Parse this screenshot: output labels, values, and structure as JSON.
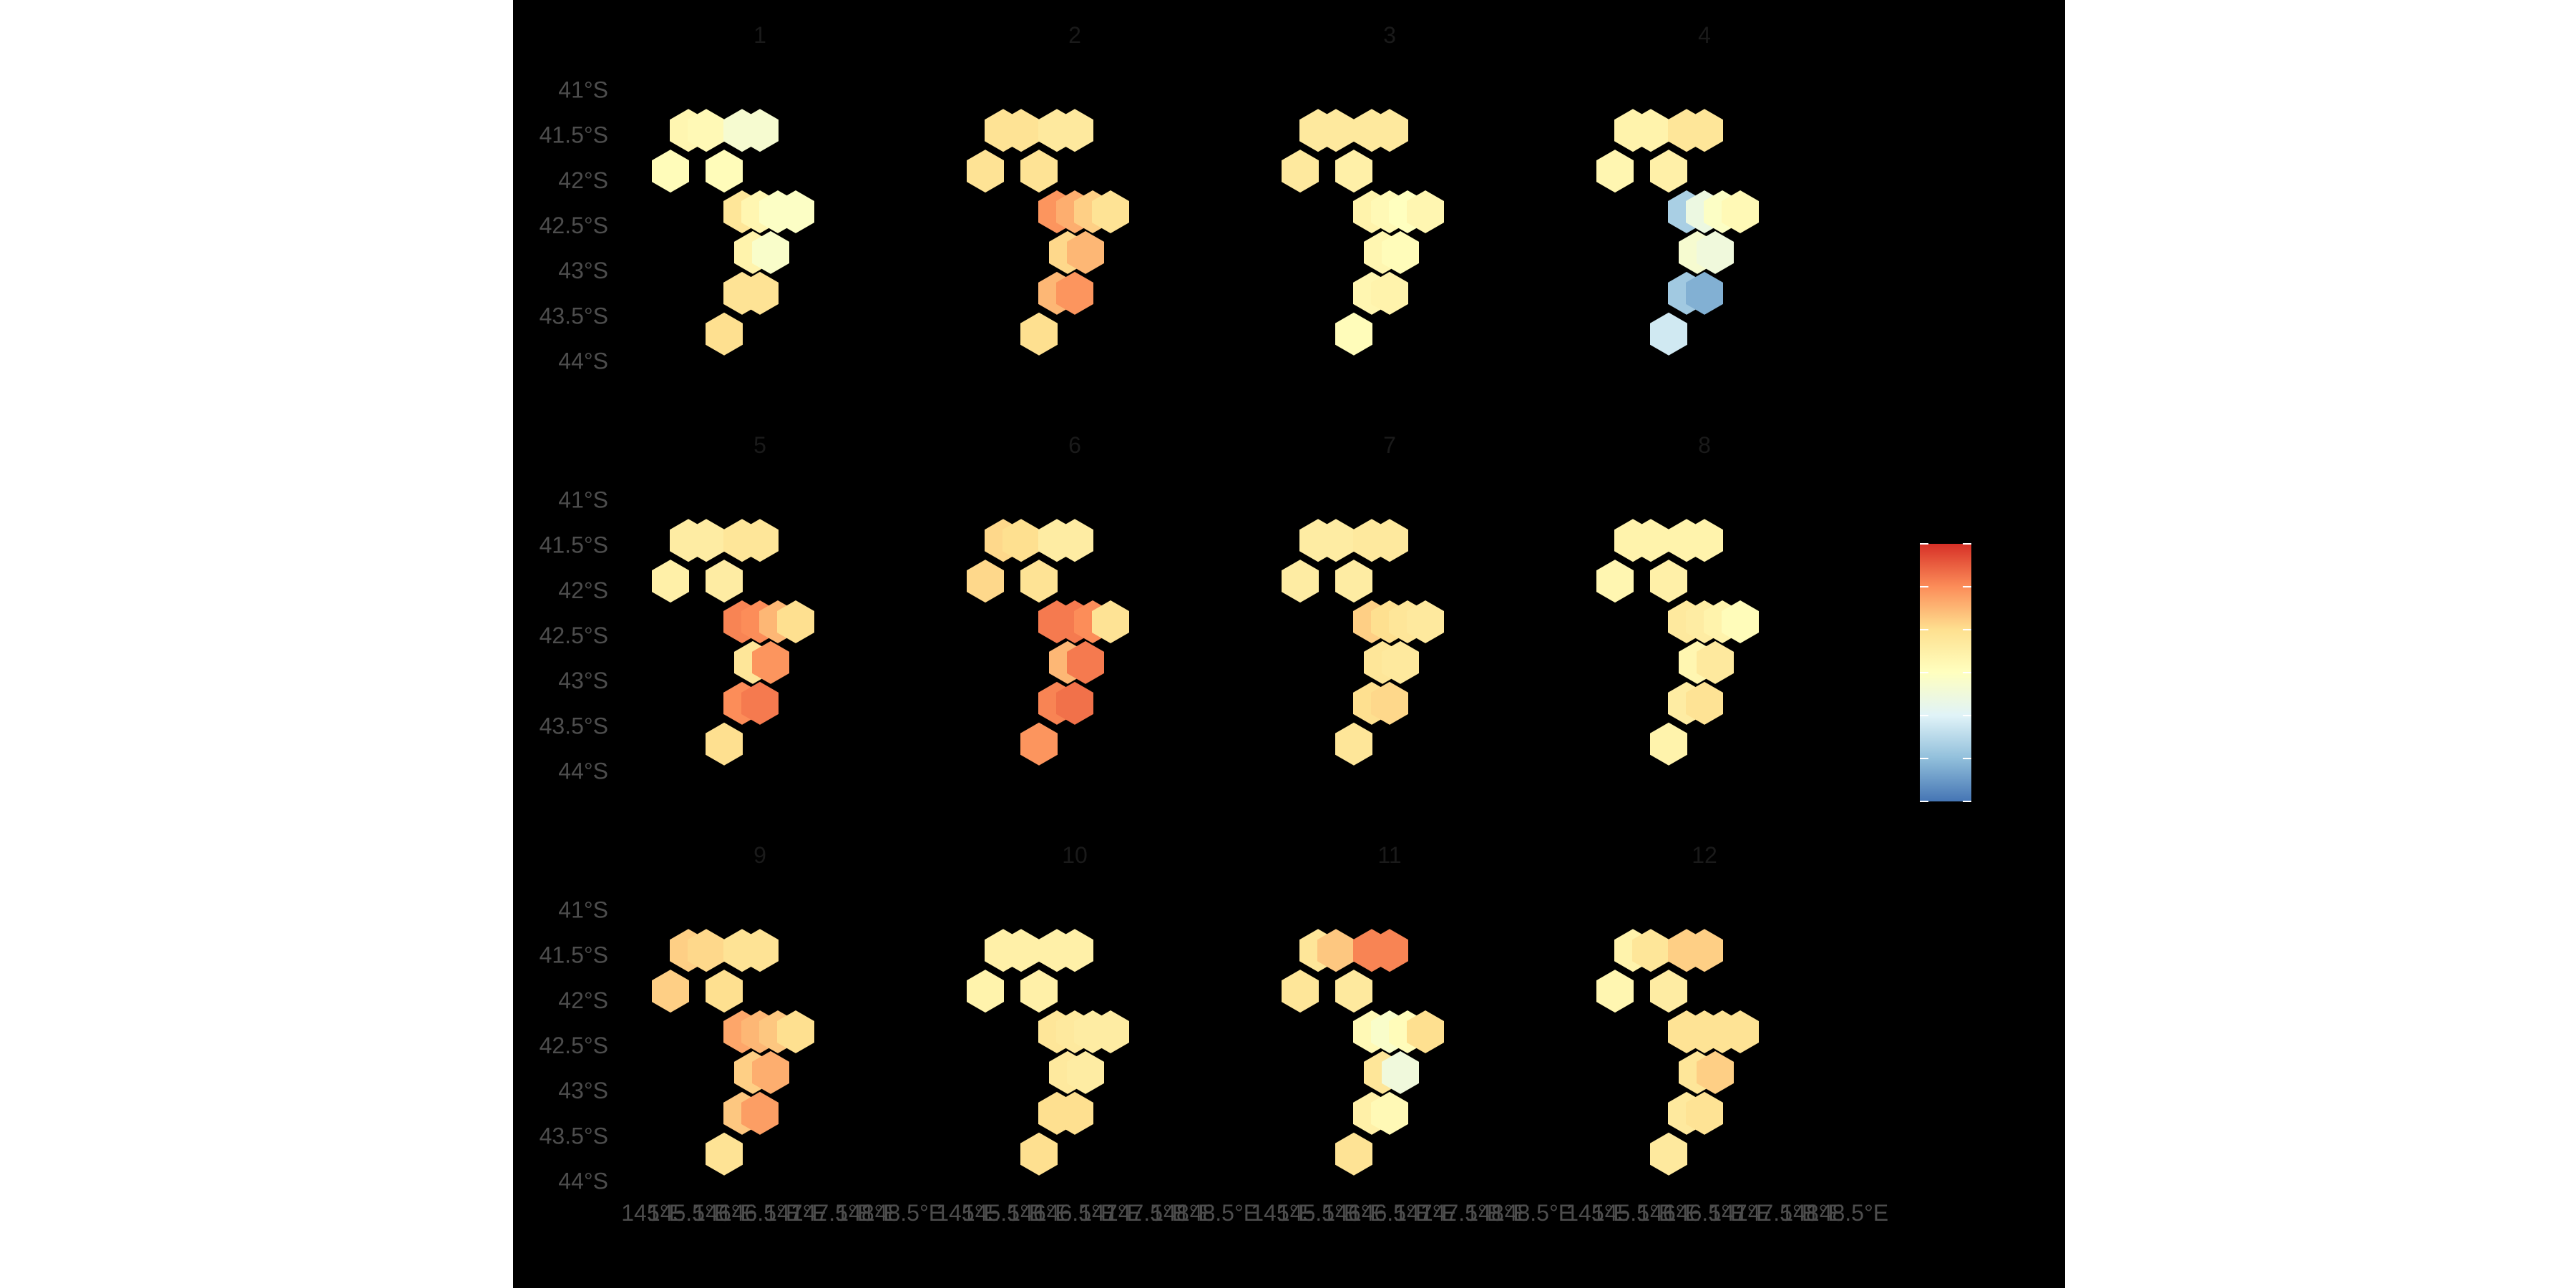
{
  "chart_data": {
    "type": "heatmap",
    "title": "",
    "xlabel": "",
    "ylabel": "",
    "legend_placement": "right",
    "legend_title": "",
    "grid": false,
    "background": "#000000",
    "colorscale": [
      "#4575b4",
      "#91bfdb",
      "#e0f3f8",
      "#ffffbf",
      "#fee090",
      "#fc8d59",
      "#d73027"
    ],
    "value_range": [
      -3,
      3
    ],
    "xlim": [
      144.5,
      148.5
    ],
    "ylim": [
      -44.2,
      -40.8
    ],
    "x_tick_labels": [
      "145°E",
      "145.5°E",
      "146°E",
      "146.5°E",
      "147°E",
      "147.5°E",
      "148°E",
      "148.5°E"
    ],
    "y_tick_labels": [
      "41°S",
      "41.5°S",
      "42°S",
      "42.5°S",
      "43°S",
      "43.5°S",
      "44°S"
    ],
    "hex_cells": [
      {
        "id": "a",
        "lon": 145.25,
        "lat": -41.9
      },
      {
        "id": "b",
        "lon": 145.5,
        "lat": -41.45
      },
      {
        "id": "c",
        "lon": 145.75,
        "lat": -41.45
      },
      {
        "id": "d",
        "lon": 146.0,
        "lat": -41.9
      },
      {
        "id": "e",
        "lon": 146.25,
        "lat": -41.45
      },
      {
        "id": "f",
        "lon": 146.5,
        "lat": -41.45
      },
      {
        "id": "g",
        "lon": 146.25,
        "lat": -42.35
      },
      {
        "id": "h",
        "lon": 146.5,
        "lat": -42.35
      },
      {
        "id": "i",
        "lon": 146.75,
        "lat": -42.35
      },
      {
        "id": "j",
        "lon": 147.0,
        "lat": -42.35
      },
      {
        "id": "k",
        "lon": 146.4,
        "lat": -42.8
      },
      {
        "id": "l",
        "lon": 146.65,
        "lat": -42.8
      },
      {
        "id": "m",
        "lon": 146.25,
        "lat": -43.25
      },
      {
        "id": "n",
        "lon": 146.5,
        "lat": -43.25
      },
      {
        "id": "o",
        "lon": 146.0,
        "lat": -43.7
      }
    ],
    "panels": [
      {
        "label": "1",
        "values": [
          0.1,
          0.3,
          0.2,
          0.1,
          -0.3,
          -0.3,
          0.8,
          0.3,
          -0.1,
          -0.1,
          0.4,
          -0.2,
          0.9,
          0.9,
          1.0
        ]
      },
      {
        "label": "2",
        "values": [
          0.9,
          0.9,
          0.9,
          0.9,
          0.7,
          0.7,
          1.9,
          1.6,
          1.2,
          0.9,
          1.1,
          1.5,
          1.5,
          1.9,
          1.0
        ]
      },
      {
        "label": "3",
        "values": [
          0.7,
          0.7,
          0.7,
          0.5,
          0.7,
          0.7,
          0.4,
          0.2,
          0.0,
          0.3,
          0.3,
          0.1,
          0.3,
          0.4,
          0.1
        ]
      },
      {
        "label": "4",
        "values": [
          0.3,
          0.4,
          0.4,
          0.5,
          0.8,
          0.8,
          -1.7,
          -0.6,
          -0.1,
          0.2,
          -0.3,
          -0.5,
          -1.8,
          -2.2,
          -1.2
        ]
      },
      {
        "label": "5",
        "values": [
          0.5,
          0.6,
          0.6,
          0.6,
          0.8,
          0.8,
          2.1,
          2.0,
          1.5,
          1.0,
          0.8,
          1.9,
          2.0,
          2.2,
          1.0
        ]
      },
      {
        "label": "6",
        "values": [
          1.1,
          1.1,
          1.0,
          0.9,
          0.6,
          0.6,
          2.2,
          2.2,
          2.0,
          0.9,
          1.5,
          2.2,
          2.1,
          2.3,
          1.9
        ]
      },
      {
        "label": "7",
        "values": [
          0.6,
          0.6,
          0.6,
          0.6,
          0.7,
          0.7,
          1.2,
          1.0,
          0.8,
          0.7,
          0.8,
          0.7,
          1.0,
          1.1,
          0.8
        ]
      },
      {
        "label": "8",
        "values": [
          0.3,
          0.4,
          0.4,
          0.5,
          0.4,
          0.4,
          0.7,
          0.6,
          0.4,
          0.1,
          0.3,
          0.7,
          0.6,
          0.9,
          0.4
        ]
      },
      {
        "label": "9",
        "values": [
          1.2,
          1.2,
          1.1,
          1.0,
          0.9,
          0.9,
          1.7,
          1.5,
          1.3,
          1.0,
          1.2,
          1.6,
          1.3,
          1.8,
          0.9
        ]
      },
      {
        "label": "10",
        "values": [
          0.4,
          0.5,
          0.5,
          0.5,
          0.5,
          0.5,
          0.8,
          0.7,
          0.6,
          0.6,
          0.7,
          0.6,
          1.0,
          1.0,
          1.0
        ]
      },
      {
        "label": "11",
        "values": [
          0.8,
          0.8,
          1.3,
          0.7,
          2.1,
          2.1,
          0.2,
          -0.2,
          0.1,
          1.0,
          0.8,
          -0.5,
          0.5,
          0.2,
          0.9
        ]
      },
      {
        "label": "12",
        "values": [
          0.3,
          0.4,
          0.8,
          0.6,
          1.2,
          1.2,
          0.9,
          0.9,
          0.9,
          0.9,
          0.8,
          1.2,
          0.7,
          0.9,
          0.7
        ]
      }
    ]
  }
}
